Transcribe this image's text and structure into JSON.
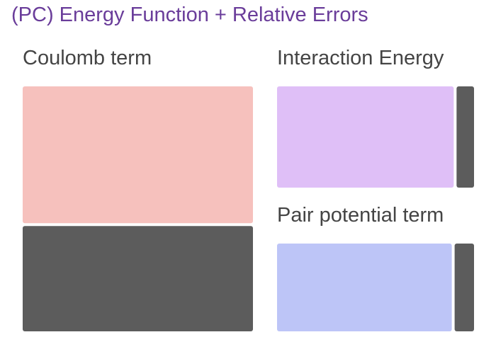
{
  "title": "(PC) Energy Function + Relative Errors",
  "colors": {
    "title": "#6a3d9a",
    "label": "#444444",
    "error_tile": "#5c5c5c"
  },
  "chart_data": {
    "type": "treemap",
    "title": "(PC) Energy Function + Relative Errors",
    "groups": [
      {
        "name": "Coulomb term",
        "color": "#f6c1bd",
        "value": 0.565,
        "relative_error": 0.435
      },
      {
        "name": "Interaction Energy",
        "color": "#dfbff7",
        "value": 0.91,
        "relative_error": 0.09
      },
      {
        "name": "Pair potential term",
        "color": "#bdc5f7",
        "value": 0.9,
        "relative_error": 0.1
      }
    ]
  }
}
